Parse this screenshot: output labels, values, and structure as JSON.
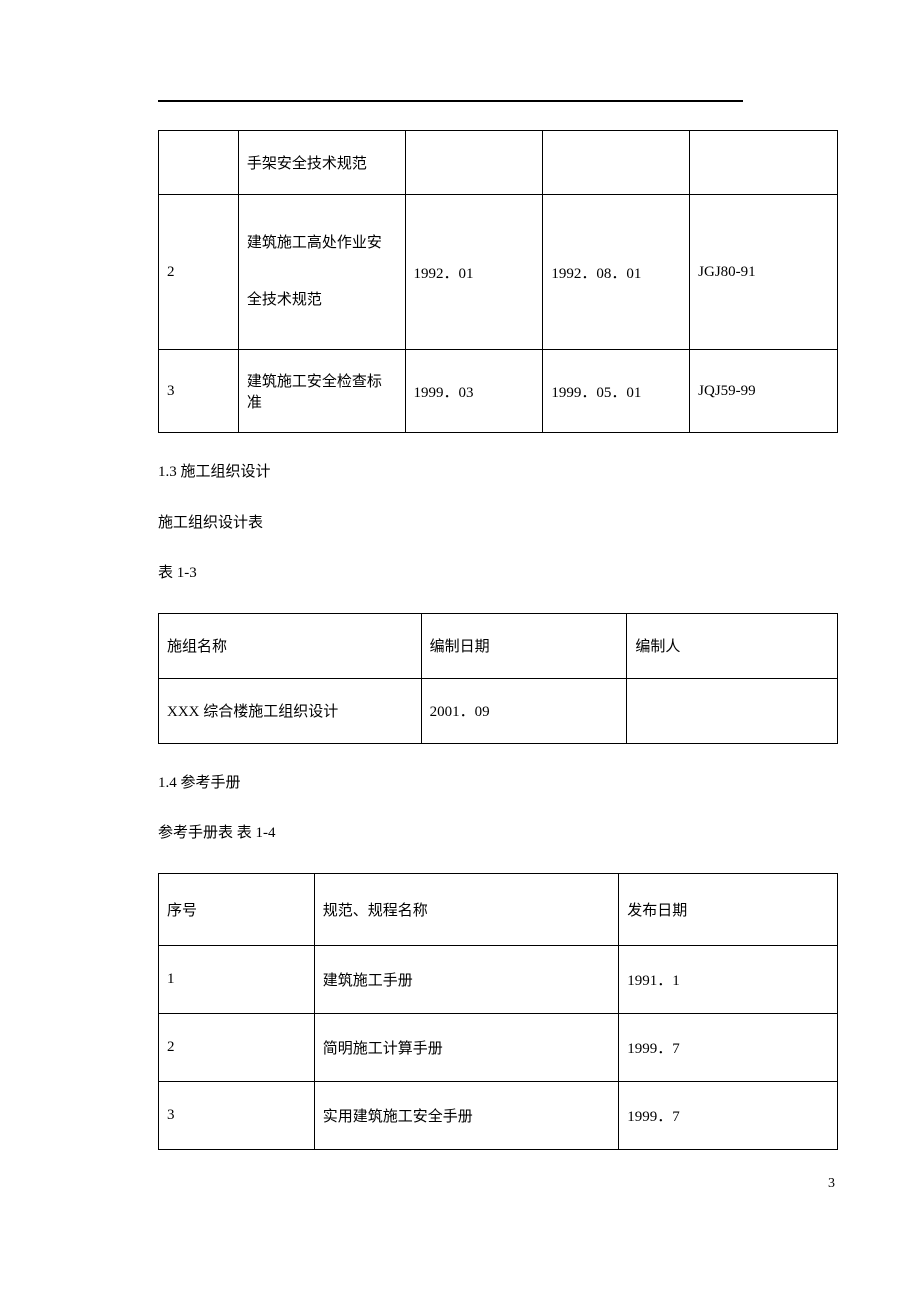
{
  "table1": {
    "rows": [
      {
        "c1": "",
        "c2": "手架安全技术规范",
        "c3": "",
        "c4": "",
        "c5": ""
      },
      {
        "c1": "2",
        "c2": "建筑施工高处作业安全技术规范",
        "c3": "1992．01",
        "c4": "1992．08．01",
        "c5": "JGJ80-91"
      },
      {
        "c1": "3",
        "c2": "建筑施工安全检查标准",
        "c3": "1999．03",
        "c4": "1999．05．01",
        "c5": "JQJ59-99"
      }
    ]
  },
  "section13_title": "1.3 施工组织设计",
  "section13_subtitle": "施工组织设计表",
  "table2_caption": "表 1-3",
  "table2": {
    "header": {
      "c1": "施组名称",
      "c2": "编制日期",
      "c3": "编制人"
    },
    "rows": [
      {
        "c1": "XXX 综合楼施工组织设计",
        "c2": "2001．09",
        "c3": ""
      }
    ]
  },
  "section14_title": "1.4 参考手册",
  "table3_caption": "参考手册表 表 1-4",
  "table3": {
    "header": {
      "c1": "序号",
      "c2": "规范、规程名称",
      "c3": "发布日期"
    },
    "rows": [
      {
        "c1": "1",
        "c2": "建筑施工手册",
        "c3": "1991．1"
      },
      {
        "c1": "2",
        "c2": "简明施工计算手册",
        "c3": "1999．7"
      },
      {
        "c1": "3",
        "c2": "实用建筑施工安全手册",
        "c3": "1999．7"
      }
    ]
  },
  "page_number": "3"
}
